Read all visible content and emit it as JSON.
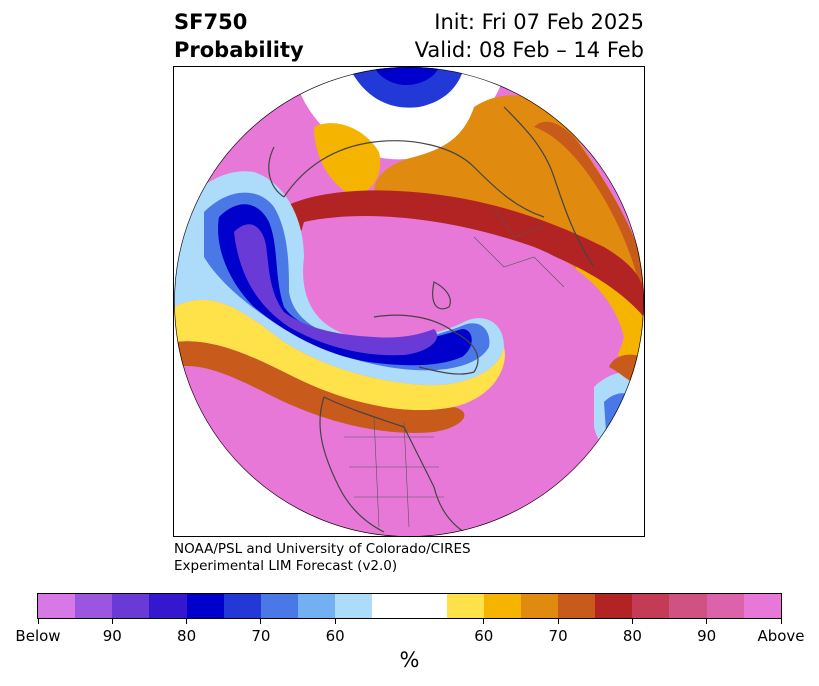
{
  "title": {
    "variable": "SF750",
    "subtitle": "Probability",
    "init": "Init: Fri 07 Feb 2025",
    "valid": "Valid: 08 Feb – 14 Feb"
  },
  "credit": {
    "line1": "NOAA/PSL and University of Colorado/CIRES",
    "line2": "Experimental LIM Forecast (v2.0)"
  },
  "colorbar": {
    "label": "%",
    "below_colors": [
      "#d877e6",
      "#9b55de",
      "#6a3ad7",
      "#3517d0",
      "#0000cc",
      "#2239d8",
      "#4a78e6",
      "#72b0f1",
      "#addcfb"
    ],
    "neutral_color": "#ffffff",
    "above_colors": [
      "#ffe14a",
      "#f4b400",
      "#e08a10",
      "#c85a1c",
      "#b22424",
      "#c33b55",
      "#cf5282",
      "#dc62aa",
      "#e878d8"
    ],
    "tick_labels": [
      "Below",
      "90",
      "80",
      "70",
      "60",
      "60",
      "70",
      "80",
      "90",
      "Above"
    ]
  },
  "map": {
    "projection": "north-polar-stereographic",
    "field": "SF750 probability",
    "colors": {
      "above_strong": "#e878d8",
      "above_high": "#dc62aa",
      "above_mid": "#b22424",
      "above_low": "#e08a10",
      "above_weak": "#ffe14a",
      "below_strong": "#6a3ad7",
      "below_high": "#0000cc",
      "below_mid": "#4a78e6",
      "below_weak": "#addcfb",
      "coast": "#444444"
    }
  }
}
